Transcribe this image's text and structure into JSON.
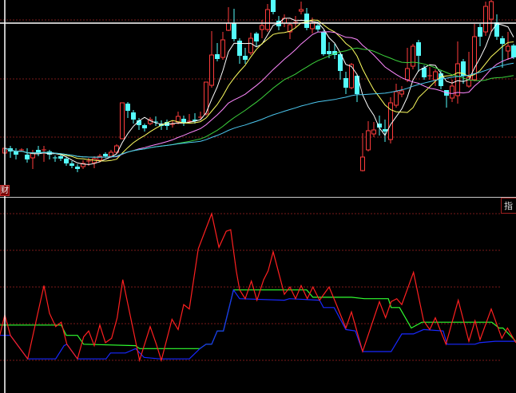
{
  "labels": {
    "finance_tab": "财",
    "indicator_tab": "指"
  },
  "colors": {
    "background": "#000000",
    "up": "#ff3c3c",
    "down": "#54fcfc",
    "grid": "#7a1a1a",
    "divider": "#c8c8c8",
    "crosshair": "#ffffff",
    "ma_white": "#ffffff",
    "ma_yellow": "#ffff60",
    "ma_pink": "#ff88ff",
    "ma_green": "#3cd23c",
    "ma_cyan": "#4cc8f0",
    "ind_red": "#ff2020",
    "ind_green": "#30ff30",
    "ind_blue": "#1828ff"
  },
  "chart_data": [
    {
      "type": "candlestick",
      "pane": "main",
      "price_gridlines": [
        22.5,
        15.1,
        7.8
      ],
      "crosshair_price": 22.1,
      "crosshair_bar": 0,
      "ylim": [
        0.3,
        25.0
      ],
      "moving_averages": [
        {
          "period": 5,
          "color": "ma_white"
        },
        {
          "period": 10,
          "color": "ma_yellow"
        },
        {
          "period": 20,
          "color": "ma_pink"
        },
        {
          "period": 30,
          "color": "ma_green"
        },
        {
          "period": 60,
          "color": "ma_cyan"
        }
      ],
      "candles_ochl": [
        [
          5.8,
          6.4,
          7.2,
          5.5
        ],
        [
          6.4,
          6.0,
          6.7,
          5.2
        ],
        [
          6.0,
          5.6,
          6.4,
          5.0
        ],
        [
          6.2,
          6.2,
          6.4,
          6.0
        ],
        [
          5.6,
          5.0,
          6.4,
          4.6
        ],
        [
          5.2,
          5.8,
          6.2,
          3.8
        ],
        [
          6.2,
          5.9,
          6.7,
          5.4
        ],
        [
          6.2,
          6.2,
          6.7,
          4.7
        ],
        [
          6.0,
          5.6,
          6.2,
          5.0
        ],
        [
          5.2,
          5.2,
          5.5,
          4.7
        ],
        [
          5.4,
          5.1,
          5.6,
          4.8
        ],
        [
          5.1,
          4.5,
          5.3,
          4.2
        ],
        [
          4.5,
          4.2,
          4.8,
          3.9
        ],
        [
          4.1,
          3.8,
          4.4,
          3.4
        ],
        [
          4.1,
          4.5,
          4.9,
          3.8
        ],
        [
          4.8,
          4.8,
          5.2,
          4.2
        ],
        [
          4.6,
          5.1,
          5.4,
          3.9
        ],
        [
          4.9,
          5.4,
          5.7,
          4.6
        ],
        [
          5.7,
          5.4,
          5.9,
          5.2
        ],
        [
          5.4,
          5.9,
          6.2,
          5.2
        ],
        [
          5.9,
          6.7,
          6.9,
          5.7
        ],
        [
          7.6,
          12.1,
          12.1,
          7.6
        ],
        [
          12.0,
          11.1,
          12.2,
          10.2
        ],
        [
          10.9,
          10.0,
          11.2,
          9.5
        ],
        [
          9.9,
          9.3,
          10.2,
          8.7
        ],
        [
          9.3,
          8.9,
          9.5,
          8.5
        ],
        [
          9.5,
          10.0,
          10.3,
          9.3
        ],
        [
          9.7,
          9.7,
          10.4,
          9.2
        ],
        [
          9.5,
          9.2,
          9.9,
          8.7
        ],
        [
          9.7,
          9.2,
          10.0,
          8.7
        ],
        [
          9.4,
          9.4,
          9.9,
          9.0
        ],
        [
          9.7,
          10.4,
          11.0,
          9.4
        ],
        [
          10.1,
          9.6,
          10.5,
          9.2
        ],
        [
          9.8,
          9.8,
          10.7,
          9.5
        ],
        [
          10.0,
          9.8,
          10.8,
          9.5
        ],
        [
          10.3,
          10.3,
          11.0,
          10.0
        ],
        [
          10.7,
          14.7,
          14.7,
          10.5
        ],
        [
          14.3,
          18.1,
          21.1,
          14.0
        ],
        [
          18.2,
          17.6,
          19.6,
          17.3
        ],
        [
          17.8,
          20.0,
          21.0,
          17.5
        ],
        [
          21.2,
          22.1,
          24.1,
          21.1
        ],
        [
          22.1,
          20.1,
          23.9,
          19.8
        ],
        [
          19.9,
          18.0,
          20.2,
          17.0
        ],
        [
          18.0,
          17.5,
          19.0,
          17.0
        ],
        [
          18.4,
          20.2,
          20.9,
          18.1
        ],
        [
          20.8,
          19.8,
          21.0,
          19.2
        ],
        [
          21.3,
          21.8,
          22.5,
          20.2
        ],
        [
          21.3,
          23.8,
          24.5,
          21.0
        ],
        [
          25.0,
          23.5,
          25.0,
          23.2
        ],
        [
          22.4,
          21.7,
          23.0,
          21.2
        ],
        [
          22.1,
          22.7,
          23.2,
          21.6
        ],
        [
          21.0,
          21.9,
          22.2,
          20.1
        ],
        [
          22.2,
          22.2,
          23.0,
          21.5
        ],
        [
          23.6,
          23.8,
          24.8,
          23.2
        ],
        [
          23.3,
          21.5,
          24.0,
          21.2
        ],
        [
          21.4,
          22.1,
          22.8,
          20.8
        ],
        [
          21.8,
          21.3,
          22.3,
          21.0
        ],
        [
          21.0,
          18.2,
          21.2,
          18.0
        ],
        [
          18.6,
          18.2,
          19.7,
          17.7
        ],
        [
          18.6,
          18.1,
          19.5,
          17.6
        ],
        [
          18.2,
          16.1,
          18.4,
          15.0
        ],
        [
          15.2,
          14.0,
          16.0,
          13.2
        ],
        [
          14.0,
          16.9,
          17.1,
          13.8
        ],
        [
          15.5,
          13.2,
          15.7,
          12.2
        ],
        [
          3.6,
          5.3,
          8.3,
          3.5
        ],
        [
          6.2,
          8.6,
          9.8,
          6.0
        ],
        [
          8.2,
          8.7,
          9.7,
          7.8
        ],
        [
          9.5,
          9.0,
          10.5,
          8.0
        ],
        [
          8.8,
          8.5,
          10.0,
          7.2
        ],
        [
          7.5,
          12.1,
          12.8,
          7.0
        ],
        [
          11.8,
          13.5,
          14.5,
          11.5
        ],
        [
          13.2,
          13.6,
          14.2,
          12.8
        ],
        [
          15.0,
          16.4,
          19.0,
          14.7
        ],
        [
          16.7,
          19.2,
          19.5,
          16.3
        ],
        [
          19.7,
          18.0,
          20.0,
          16.0
        ],
        [
          16.5,
          15.3,
          16.8,
          15.0
        ],
        [
          15.5,
          15.5,
          16.6,
          15.0
        ],
        [
          15.0,
          16.0,
          16.3,
          14.2
        ],
        [
          15.8,
          14.2,
          16.2,
          13.8
        ],
        [
          13.7,
          13.0,
          13.7,
          11.5
        ],
        [
          12.7,
          14.2,
          15.0,
          12.2
        ],
        [
          13.0,
          17.0,
          19.8,
          12.0
        ],
        [
          17.3,
          15.5,
          17.6,
          14.5
        ],
        [
          14.2,
          15.3,
          18.5,
          14.0
        ],
        [
          15.0,
          20.4,
          22.0,
          14.8
        ],
        [
          21.6,
          20.4,
          22.0,
          19.2
        ],
        [
          21.0,
          24.2,
          24.8,
          20.5
        ],
        [
          22.6,
          24.8,
          25.0,
          21.0
        ],
        [
          22.2,
          20.4,
          23.2,
          20.0
        ],
        [
          20.2,
          19.5,
          20.5,
          16.5
        ],
        [
          18.6,
          19.2,
          21.0,
          17.5
        ],
        [
          19.3,
          17.8,
          19.5,
          17.6
        ]
      ]
    },
    {
      "type": "line",
      "pane": "indicator",
      "ylim": [
        0,
        100
      ],
      "gridlines": [
        100,
        75,
        50,
        25,
        0
      ],
      "series": [
        {
          "color": "ind_green",
          "points": [
            [
              -0.9,
              24
            ],
            [
              10.1,
              24
            ],
            [
              11,
              17
            ],
            [
              13,
              17
            ],
            [
              14.1,
              11
            ],
            [
              23.4,
              10
            ],
            [
              24.1,
              8
            ],
            [
              34.9,
              8
            ],
            [
              36,
              11
            ],
            [
              37,
              11
            ],
            [
              38,
              20
            ],
            [
              39.1,
              20
            ],
            [
              40.9,
              48
            ],
            [
              44.9,
              48
            ],
            [
              54,
              48
            ],
            [
              55.1,
              43
            ],
            [
              62,
              43
            ],
            [
              64.3,
              42
            ],
            [
              68.6,
              42
            ],
            [
              69.1,
              36
            ],
            [
              70.6,
              36
            ],
            [
              72.7,
              22
            ],
            [
              74.6,
              26
            ],
            [
              75.9,
              26
            ],
            [
              87.1,
              26
            ],
            [
              88.4,
              22
            ],
            [
              89.1,
              22
            ],
            [
              91.4,
              13
            ]
          ]
        },
        {
          "color": "ind_blue",
          "points": [
            [
              -0.9,
              17
            ],
            [
              1,
              17
            ],
            [
              4.1,
              1
            ],
            [
              9.1,
              1
            ],
            [
              10.6,
              10
            ],
            [
              11.1,
              11
            ],
            [
              13,
              1
            ],
            [
              18.1,
              1
            ],
            [
              18.9,
              5
            ],
            [
              21.6,
              5
            ],
            [
              23.4,
              8
            ],
            [
              24.9,
              2
            ],
            [
              27.7,
              1
            ],
            [
              33,
              1
            ],
            [
              34.9,
              8
            ],
            [
              36,
              11
            ],
            [
              37,
              11
            ],
            [
              38,
              20
            ],
            [
              39.1,
              20
            ],
            [
              40.9,
              48
            ],
            [
              42,
              42
            ],
            [
              50,
              41
            ],
            [
              50.9,
              42
            ],
            [
              56.3,
              41
            ],
            [
              57,
              36
            ],
            [
              58.9,
              36
            ],
            [
              61,
              21
            ],
            [
              62.7,
              20
            ],
            [
              64,
              6
            ],
            [
              69.1,
              6
            ],
            [
              71,
              18
            ],
            [
              73.1,
              18
            ],
            [
              74.9,
              21
            ],
            [
              78.4,
              20
            ],
            [
              79.1,
              11
            ],
            [
              84.1,
              11
            ],
            [
              84.9,
              12
            ],
            [
              87.7,
              13
            ],
            [
              91.4,
              13
            ]
          ]
        },
        {
          "color": "ind_red",
          "points": [
            [
              -0.9,
              17
            ],
            [
              0,
              31
            ],
            [
              1,
              17
            ],
            [
              4.1,
              1
            ],
            [
              7,
              51
            ],
            [
              8,
              32
            ],
            [
              9.1,
              23
            ],
            [
              10.1,
              26
            ],
            [
              11.1,
              11
            ],
            [
              13,
              1
            ],
            [
              14.1,
              16
            ],
            [
              15,
              20
            ],
            [
              16,
              10
            ],
            [
              17,
              24
            ],
            [
              18,
              12
            ],
            [
              19.1,
              15
            ],
            [
              20.1,
              29
            ],
            [
              21.1,
              55
            ],
            [
              24.1,
              0
            ],
            [
              26,
              23
            ],
            [
              27.1,
              11
            ],
            [
              28,
              0
            ],
            [
              29.9,
              28
            ],
            [
              31,
              21
            ],
            [
              32,
              38
            ],
            [
              33,
              35
            ],
            [
              34.6,
              76
            ],
            [
              37,
              100
            ],
            [
              38.3,
              77
            ],
            [
              39.6,
              88
            ],
            [
              40.4,
              89
            ],
            [
              41.4,
              61
            ],
            [
              42,
              48
            ],
            [
              43,
              42
            ],
            [
              44.1,
              54
            ],
            [
              45.1,
              41
            ],
            [
              46.3,
              55
            ],
            [
              47.1,
              61
            ],
            [
              48,
              74
            ],
            [
              50,
              45
            ],
            [
              51,
              50
            ],
            [
              52,
              42
            ],
            [
              53,
              51
            ],
            [
              54.1,
              42
            ],
            [
              55.1,
              50
            ],
            [
              56.3,
              41
            ],
            [
              58,
              50
            ],
            [
              59.1,
              40
            ],
            [
              61,
              22
            ],
            [
              62,
              33
            ],
            [
              64,
              6
            ],
            [
              67,
              40
            ],
            [
              68.1,
              29
            ],
            [
              69.1,
              40
            ],
            [
              70.1,
              42
            ],
            [
              71,
              38
            ],
            [
              73.1,
              60
            ],
            [
              74.9,
              27
            ],
            [
              76,
              21
            ],
            [
              77,
              29
            ],
            [
              78.9,
              11
            ],
            [
              81.1,
              41
            ],
            [
              83,
              13
            ],
            [
              84.1,
              27
            ],
            [
              85,
              14
            ],
            [
              87,
              35
            ],
            [
              88.9,
              15
            ],
            [
              89.9,
              22
            ],
            [
              91.4,
              12
            ]
          ]
        }
      ]
    }
  ]
}
